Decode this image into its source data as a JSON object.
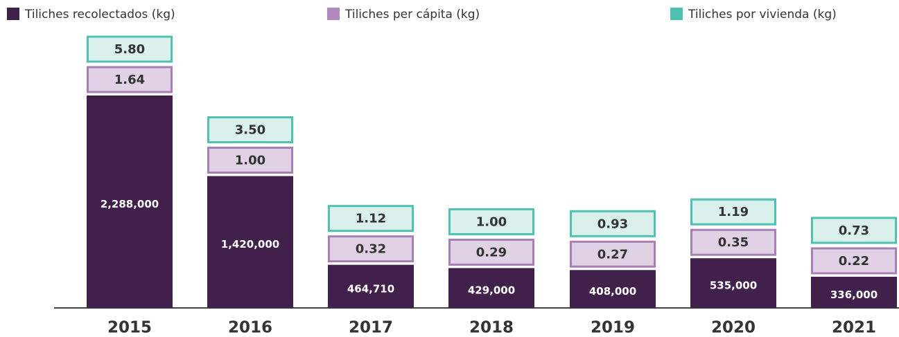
{
  "chart_data": {
    "type": "bar",
    "categories": [
      "2015",
      "2016",
      "2017",
      "2018",
      "2019",
      "2020",
      "2021"
    ],
    "series": [
      {
        "name": "Tiliches recolectados (kg)",
        "color": "#42204c",
        "values": [
          2288000,
          1420000,
          464710,
          429000,
          408000,
          535000,
          336000
        ],
        "value_labels": [
          "2,288,000",
          "1,420,000",
          "464,710",
          "429,000",
          "408,000",
          "535,000",
          "336,000"
        ]
      },
      {
        "name": "Tiliches per cápita (kg)",
        "color": "#b28ac0",
        "values": [
          1.64,
          1.0,
          0.32,
          0.29,
          0.27,
          0.35,
          0.22
        ],
        "value_labels": [
          "1.64",
          "1.00",
          "0.32",
          "0.29",
          "0.27",
          "0.35",
          "0.22"
        ]
      },
      {
        "name": "Tiliches por vivienda (kg)",
        "color": "#4fc1b0",
        "values": [
          5.8,
          3.5,
          1.12,
          1.0,
          0.93,
          1.19,
          0.73
        ],
        "value_labels": [
          "5.80",
          "3.50",
          "1.12",
          "1.00",
          "0.93",
          "1.19",
          "0.73"
        ]
      }
    ],
    "legend": "top"
  }
}
